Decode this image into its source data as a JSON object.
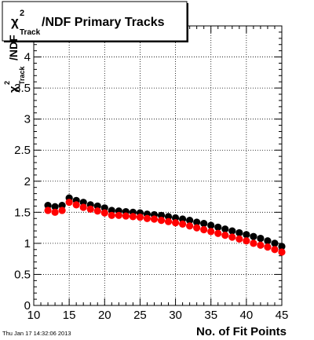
{
  "chart_data": {
    "type": "scatter",
    "title_chi": "χ",
    "title_sup": "2",
    "title_sub": "Track",
    "title_rest": "/NDF Primary Tracks",
    "xlabel": "No. of Fit Points",
    "ylabel_chi": "χ",
    "ylabel_sup": "2",
    "ylabel_sub": "Track",
    "ylabel_rest": "/NDF",
    "timestamp": "Thu Jan 17 14:32:06 2013",
    "xlim": [
      10,
      45
    ],
    "ylim": [
      0,
      4.5
    ],
    "xticks": [
      "10",
      "15",
      "20",
      "25",
      "30",
      "35",
      "40",
      "45"
    ],
    "yticks": [
      "0",
      "0.5",
      "1",
      "1.5",
      "2",
      "2.5",
      "3",
      "3.5",
      "4"
    ],
    "grid": true,
    "x": [
      12,
      13,
      14,
      15,
      16,
      17,
      18,
      19,
      20,
      21,
      22,
      23,
      24,
      25,
      26,
      27,
      28,
      29,
      30,
      31,
      32,
      33,
      34,
      35,
      36,
      37,
      38,
      39,
      40,
      41,
      42,
      43,
      44,
      45
    ],
    "series": [
      {
        "color": "#000000",
        "values": [
          1.61,
          1.59,
          1.61,
          1.73,
          1.69,
          1.66,
          1.62,
          1.6,
          1.57,
          1.53,
          1.52,
          1.51,
          1.5,
          1.49,
          1.47,
          1.46,
          1.45,
          1.43,
          1.41,
          1.39,
          1.37,
          1.34,
          1.32,
          1.29,
          1.26,
          1.23,
          1.2,
          1.17,
          1.14,
          1.11,
          1.08,
          1.04,
          1.0,
          0.95
        ]
      },
      {
        "color": "#ff0000",
        "values": [
          1.53,
          1.5,
          1.53,
          1.66,
          1.62,
          1.58,
          1.55,
          1.52,
          1.49,
          1.45,
          1.45,
          1.44,
          1.43,
          1.42,
          1.4,
          1.39,
          1.37,
          1.35,
          1.33,
          1.31,
          1.28,
          1.25,
          1.22,
          1.19,
          1.16,
          1.13,
          1.1,
          1.07,
          1.04,
          1.0,
          0.97,
          0.94,
          0.9,
          0.86
        ]
      }
    ]
  }
}
